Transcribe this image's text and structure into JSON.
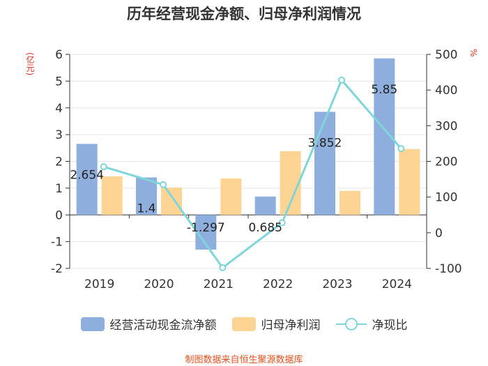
{
  "chart_data": {
    "type": "bar",
    "title": "历年经营现金净额、归母净利润情况",
    "left_axis_unit": "(亿元)",
    "right_axis_unit": "%",
    "categories": [
      "2019",
      "2020",
      "2021",
      "2022",
      "2023",
      "2024"
    ],
    "ylim_left": [
      -2,
      6
    ],
    "yticks_left": [
      "6",
      "5",
      "4",
      "3",
      "2",
      "1",
      "0",
      "-1",
      "-2"
    ],
    "ylim_right": [
      -100,
      500
    ],
    "yticks_right": [
      "500",
      "400",
      "300",
      "200",
      "100",
      "0",
      "-100"
    ],
    "grid": true,
    "legend_position": "bottom",
    "series": [
      {
        "name": "经营活动现金流净额",
        "kind": "bar",
        "axis": "left",
        "color": "#8eaede",
        "values": [
          2.654,
          1.4,
          -1.297,
          0.685,
          3.852,
          5.85
        ],
        "labels": [
          "2.654",
          "1.4",
          "-1.297",
          "0.685",
          "3.852",
          "5.85"
        ]
      },
      {
        "name": "归母净利润",
        "kind": "bar",
        "axis": "left",
        "color": "#fed494",
        "values": [
          1.44,
          1.02,
          1.36,
          2.38,
          0.9,
          2.46
        ]
      },
      {
        "name": "净现比",
        "kind": "line",
        "axis": "right",
        "color": "#7fd6d9",
        "values": [
          185,
          135,
          -98,
          28,
          428,
          236
        ]
      }
    ]
  },
  "footer": "制图数据来自恒生聚源数据库"
}
